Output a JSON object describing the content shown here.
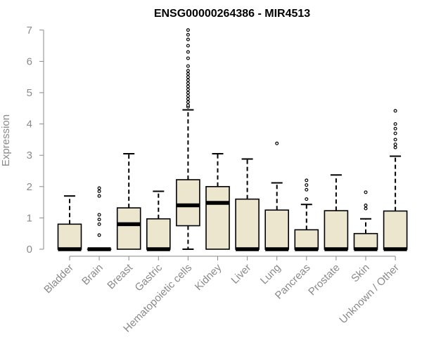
{
  "chart_data": {
    "type": "box",
    "title": "ENSG00000264386 - MIR4513",
    "xlabel": "",
    "ylabel": "Expression",
    "ylim": [
      0,
      7
    ],
    "yticks": [
      0,
      1,
      2,
      3,
      4,
      5,
      6,
      7
    ],
    "grid": false,
    "colors": {
      "box_fill": "#ede6cf",
      "stroke": "#000000",
      "axis_text": "#8a8a8a"
    },
    "categories": [
      "Bladder",
      "Brain",
      "Breast",
      "Gastric",
      "Hematopoietic cells",
      "Kidney",
      "Liver",
      "Lung",
      "Pancreas",
      "Prostate",
      "Skin",
      "Unknown / Other"
    ],
    "boxes": [
      {
        "category": "Bladder",
        "q1": 0,
        "median": 0,
        "q3": 0.8,
        "whisker_low": 0,
        "whisker_high": 1.7,
        "outliers": []
      },
      {
        "category": "Brain",
        "q1": 0,
        "median": 0,
        "q3": 0,
        "whisker_low": 0,
        "whisker_high": 0,
        "outliers": [
          0.45,
          0.8,
          0.95,
          1.1,
          1.7,
          1.85,
          1.95
        ]
      },
      {
        "category": "Breast",
        "q1": 0,
        "median": 0.8,
        "q3": 1.32,
        "whisker_low": 0,
        "whisker_high": 3.05,
        "outliers": []
      },
      {
        "category": "Gastric",
        "q1": 0,
        "median": 0,
        "q3": 0.97,
        "whisker_low": 0,
        "whisker_high": 1.85,
        "outliers": []
      },
      {
        "category": "Hematopoietic cells",
        "q1": 0.75,
        "median": 1.4,
        "q3": 2.22,
        "whisker_low": 0,
        "whisker_high": 4.45,
        "outliers": [
          4.55,
          4.6,
          4.7,
          4.8,
          4.9,
          5.0,
          5.1,
          5.2,
          5.3,
          5.4,
          5.5,
          5.6,
          5.7,
          5.85,
          6.1,
          6.3,
          6.5,
          6.7,
          6.85,
          7.0
        ]
      },
      {
        "category": "Kidney",
        "q1": 0,
        "median": 1.48,
        "q3": 2.0,
        "whisker_low": 0,
        "whisker_high": 3.05,
        "outliers": []
      },
      {
        "category": "Liver",
        "q1": 0,
        "median": 0,
        "q3": 1.6,
        "whisker_low": 0,
        "whisker_high": 2.88,
        "outliers": []
      },
      {
        "category": "Lung",
        "q1": 0,
        "median": 0,
        "q3": 1.25,
        "whisker_low": 0,
        "whisker_high": 2.12,
        "outliers": [
          3.38
        ]
      },
      {
        "category": "Pancreas",
        "q1": 0,
        "median": 0,
        "q3": 0.62,
        "whisker_low": 0,
        "whisker_high": 1.43,
        "outliers": [
          1.6,
          1.9,
          2.05,
          2.2
        ]
      },
      {
        "category": "Prostate",
        "q1": 0,
        "median": 0,
        "q3": 1.23,
        "whisker_low": 0,
        "whisker_high": 2.37,
        "outliers": []
      },
      {
        "category": "Skin",
        "q1": 0,
        "median": 0,
        "q3": 0.5,
        "whisker_low": 0,
        "whisker_high": 0.97,
        "outliers": [
          1.3,
          1.4,
          1.82
        ]
      },
      {
        "category": "Unknown / Other",
        "q1": 0,
        "median": 0,
        "q3": 1.22,
        "whisker_low": 0,
        "whisker_high": 2.97,
        "outliers": [
          3.25,
          3.35,
          3.5,
          3.7,
          3.85,
          4.0,
          4.42
        ]
      }
    ]
  }
}
